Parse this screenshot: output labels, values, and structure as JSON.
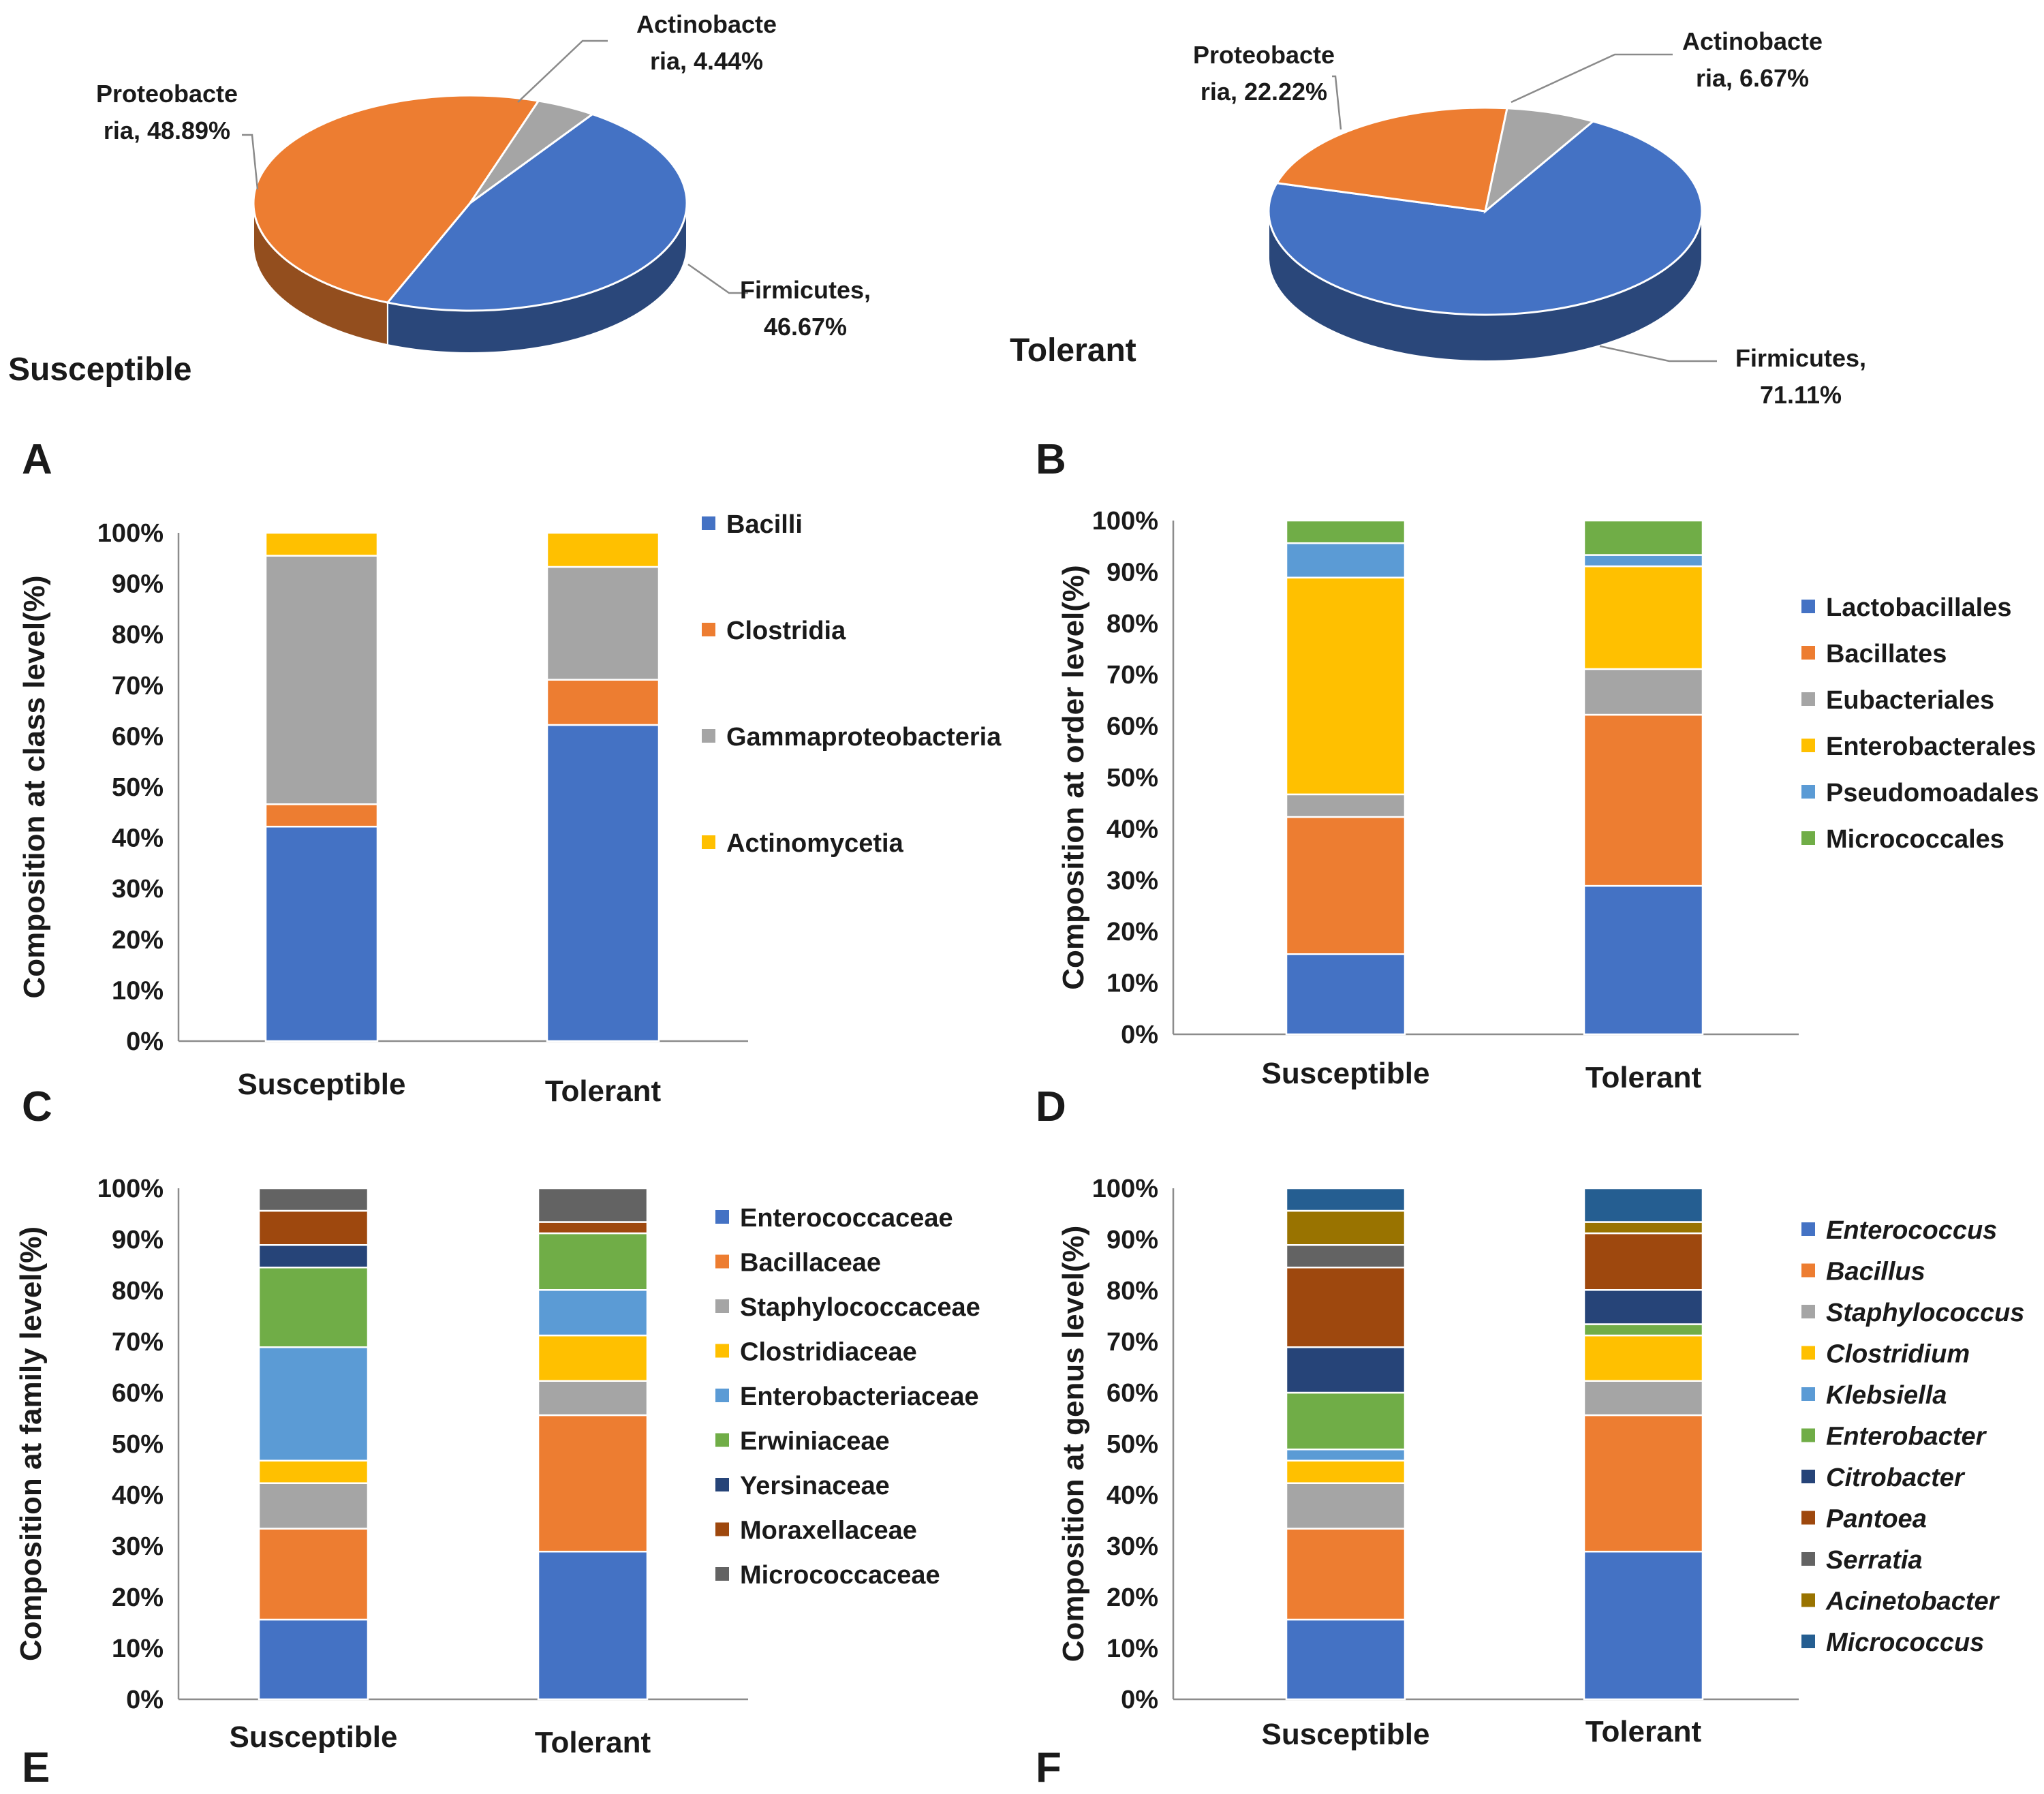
{
  "chart_data": [
    {
      "panel": "A",
      "type": "pie",
      "group": "Susceptible",
      "slices": [
        {
          "label_line1": "Firmicutes,",
          "label_line2": "46.67%",
          "value": 46.67,
          "color": "#4472C4"
        },
        {
          "label_line1": "Proteobacte",
          "label_line2": "ria, 48.89%",
          "value": 48.89,
          "color": "#ED7D31"
        },
        {
          "label_line1": "Actinobacte",
          "label_line2": "ria, 4.44%",
          "value": 4.44,
          "color": "#A5A5A5"
        }
      ]
    },
    {
      "panel": "B",
      "type": "pie",
      "group": "Tolerant",
      "slices": [
        {
          "label_line1": "Firmicutes,",
          "label_line2": "71.11%",
          "value": 71.11,
          "color": "#4472C4"
        },
        {
          "label_line1": "Proteobacte",
          "label_line2": "ria, 22.22%",
          "value": 22.22,
          "color": "#ED7D31"
        },
        {
          "label_line1": "Actinobacte",
          "label_line2": "ria, 6.67%",
          "value": 6.67,
          "color": "#A5A5A5"
        }
      ]
    },
    {
      "panel": "C",
      "type": "bar",
      "stacked": true,
      "ylabel": "Composition at class level(%)",
      "ylim": [
        0,
        100
      ],
      "yticks": [
        "0%",
        "10%",
        "20%",
        "30%",
        "40%",
        "50%",
        "60%",
        "70%",
        "80%",
        "90%",
        "100%"
      ],
      "categories": [
        "Susceptible",
        "Tolerant"
      ],
      "series": [
        {
          "name": "Bacilli",
          "italic": false,
          "color": "#4472C4",
          "values": [
            42.2,
            62.2
          ]
        },
        {
          "name": "Clostridia",
          "italic": false,
          "color": "#ED7D31",
          "values": [
            4.4,
            8.9
          ]
        },
        {
          "name": "Gammaproteobacteria",
          "italic": false,
          "color": "#A5A5A5",
          "values": [
            48.9,
            22.2
          ]
        },
        {
          "name": "Actinomycetia",
          "italic": false,
          "color": "#FFC000",
          "values": [
            4.5,
            6.7
          ]
        }
      ]
    },
    {
      "panel": "D",
      "type": "bar",
      "stacked": true,
      "ylabel": "Composition at order level(%)",
      "ylim": [
        0,
        100
      ],
      "yticks": [
        "0%",
        "10%",
        "20%",
        "30%",
        "40%",
        "50%",
        "60%",
        "70%",
        "80%",
        "90%",
        "100%"
      ],
      "categories": [
        "Susceptible",
        "Tolerant"
      ],
      "series": [
        {
          "name": "Lactobacillales",
          "italic": false,
          "color": "#4472C4",
          "values": [
            15.6,
            28.9
          ]
        },
        {
          "name": "Bacillates",
          "italic": false,
          "color": "#ED7D31",
          "values": [
            26.7,
            33.3
          ]
        },
        {
          "name": "Eubacteriales",
          "italic": false,
          "color": "#A5A5A5",
          "values": [
            4.4,
            8.9
          ]
        },
        {
          "name": "Enterobacterales",
          "italic": false,
          "color": "#FFC000",
          "values": [
            42.2,
            20.0
          ]
        },
        {
          "name": "Pseudomoadales",
          "italic": false,
          "color": "#5B9BD5",
          "values": [
            6.7,
            2.2
          ]
        },
        {
          "name": "Micrococcales",
          "italic": false,
          "color": "#70AD47",
          "values": [
            4.4,
            6.7
          ]
        }
      ]
    },
    {
      "panel": "E",
      "type": "bar",
      "stacked": true,
      "ylabel": "Composition at family level(%)",
      "ylim": [
        0,
        100
      ],
      "yticks": [
        "0%",
        "10%",
        "20%",
        "30%",
        "40%",
        "50%",
        "60%",
        "70%",
        "80%",
        "90%",
        "100%"
      ],
      "categories": [
        "Susceptible",
        "Tolerant"
      ],
      "series": [
        {
          "name": "Enterococcaceae",
          "italic": false,
          "color": "#4472C4",
          "values": [
            15.6,
            28.9
          ]
        },
        {
          "name": "Bacillaceae",
          "italic": false,
          "color": "#ED7D31",
          "values": [
            17.8,
            26.7
          ]
        },
        {
          "name": "Staphylococcaceae",
          "italic": false,
          "color": "#A5A5A5",
          "values": [
            8.9,
            6.7
          ]
        },
        {
          "name": "Clostridiaceae",
          "italic": false,
          "color": "#FFC000",
          "values": [
            4.4,
            8.9
          ]
        },
        {
          "name": "Enterobacteriaceae",
          "italic": false,
          "color": "#5B9BD5",
          "values": [
            22.2,
            8.9
          ]
        },
        {
          "name": "Erwiniaceae",
          "italic": false,
          "color": "#70AD47",
          "values": [
            15.6,
            11.1
          ]
        },
        {
          "name": "Yersinaceae",
          "italic": false,
          "color": "#264478",
          "values": [
            4.4,
            0
          ]
        },
        {
          "name": "Moraxellaceae",
          "italic": false,
          "color": "#9E480E",
          "values": [
            6.7,
            2.2
          ]
        },
        {
          "name": "Micrococcaceae",
          "italic": false,
          "color": "#636363",
          "values": [
            4.4,
            6.6
          ]
        }
      ]
    },
    {
      "panel": "F",
      "type": "bar",
      "stacked": true,
      "ylabel": "Composition at genus level(%)",
      "ylim": [
        0,
        100
      ],
      "yticks": [
        "0%",
        "10%",
        "20%",
        "30%",
        "40%",
        "50%",
        "60%",
        "70%",
        "80%",
        "90%",
        "100%"
      ],
      "categories": [
        "Susceptible",
        "Tolerant"
      ],
      "series": [
        {
          "name": "Enterococcus",
          "italic": true,
          "color": "#4472C4",
          "values": [
            15.6,
            28.9
          ]
        },
        {
          "name": "Bacillus",
          "italic": true,
          "color": "#ED7D31",
          "values": [
            17.8,
            26.7
          ]
        },
        {
          "name": "Staphylococcus",
          "italic": true,
          "color": "#A5A5A5",
          "values": [
            8.9,
            6.7
          ]
        },
        {
          "name": "Clostridium",
          "italic": true,
          "color": "#FFC000",
          "values": [
            4.4,
            8.9
          ]
        },
        {
          "name": "Klebsiella",
          "italic": true,
          "color": "#5B9BD5",
          "values": [
            2.2,
            0
          ]
        },
        {
          "name": "Enterobacter",
          "italic": true,
          "color": "#70AD47",
          "values": [
            11.1,
            2.2
          ]
        },
        {
          "name": "Citrobacter",
          "italic": true,
          "color": "#264478",
          "values": [
            8.9,
            6.7
          ]
        },
        {
          "name": "Pantoea",
          "italic": true,
          "color": "#9E480E",
          "values": [
            15.6,
            11.1
          ]
        },
        {
          "name": "Serratia",
          "italic": true,
          "color": "#636363",
          "values": [
            4.4,
            0
          ]
        },
        {
          "name": "Acinetobacter",
          "italic": true,
          "color": "#997300",
          "values": [
            6.7,
            2.2
          ]
        },
        {
          "name": "Micrococcus",
          "italic": true,
          "color": "#255E91",
          "values": [
            4.4,
            6.6
          ]
        }
      ]
    }
  ]
}
